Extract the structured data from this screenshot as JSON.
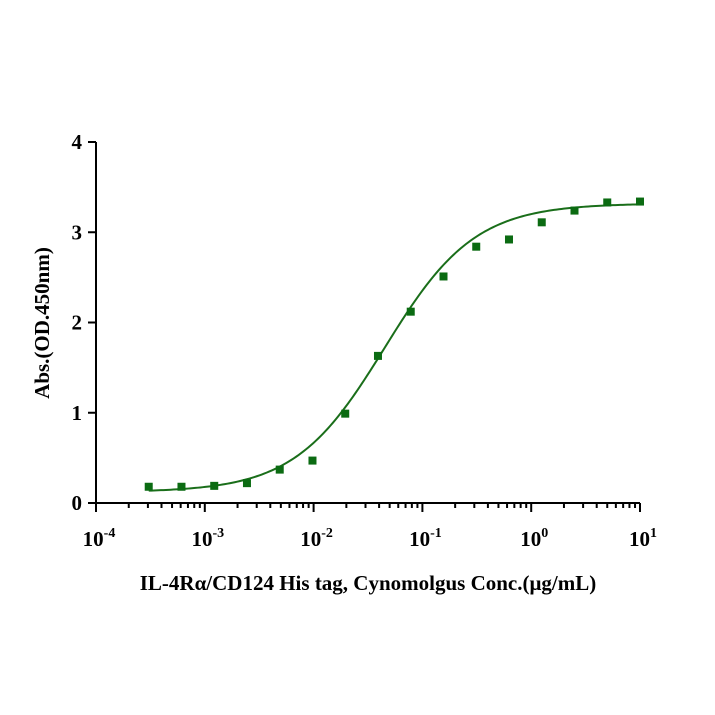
{
  "chart_data": {
    "type": "scatter",
    "xscale": "log",
    "xlim": [
      0.0001,
      10
    ],
    "ylim": [
      0,
      4
    ],
    "xlabel": "IL-4Rα/CD124 His tag, Cynomolgus  Conc.(μg/mL)",
    "ylabel": "Abs.(OD.450nm)",
    "yticks": [
      0,
      1,
      2,
      3,
      4
    ],
    "xticks": [
      {
        "value": 0.0001,
        "base": "10",
        "exp": "-4"
      },
      {
        "value": 0.001,
        "base": "10",
        "exp": "-3"
      },
      {
        "value": 0.01,
        "base": "10",
        "exp": "-2"
      },
      {
        "value": 0.1,
        "base": "10",
        "exp": "-1"
      },
      {
        "value": 1,
        "base": "10",
        "exp": "0"
      },
      {
        "value": 10,
        "base": "10",
        "exp": "1"
      }
    ],
    "series": [
      {
        "x": [
          0.0003052,
          0.0006104,
          0.001221,
          0.002441,
          0.004883,
          0.009766,
          0.01953,
          0.03906,
          0.07813,
          0.1563,
          0.3125,
          0.625,
          1.25,
          2.5,
          5,
          10
        ],
        "y": [
          0.18,
          0.18,
          0.19,
          0.22,
          0.37,
          0.47,
          0.99,
          1.63,
          2.12,
          2.51,
          2.84,
          2.92,
          3.11,
          3.24,
          3.33,
          3.34
        ],
        "fit": "4PL"
      }
    ],
    "fit_params": {
      "bottom": 0.12,
      "top": 3.32,
      "ec50": 0.045,
      "hill": 1.05
    },
    "colors": {
      "marker": "#0b6b12",
      "line": "#1a6e1a",
      "axis": "#000000"
    },
    "grid": false,
    "legend": "none"
  }
}
